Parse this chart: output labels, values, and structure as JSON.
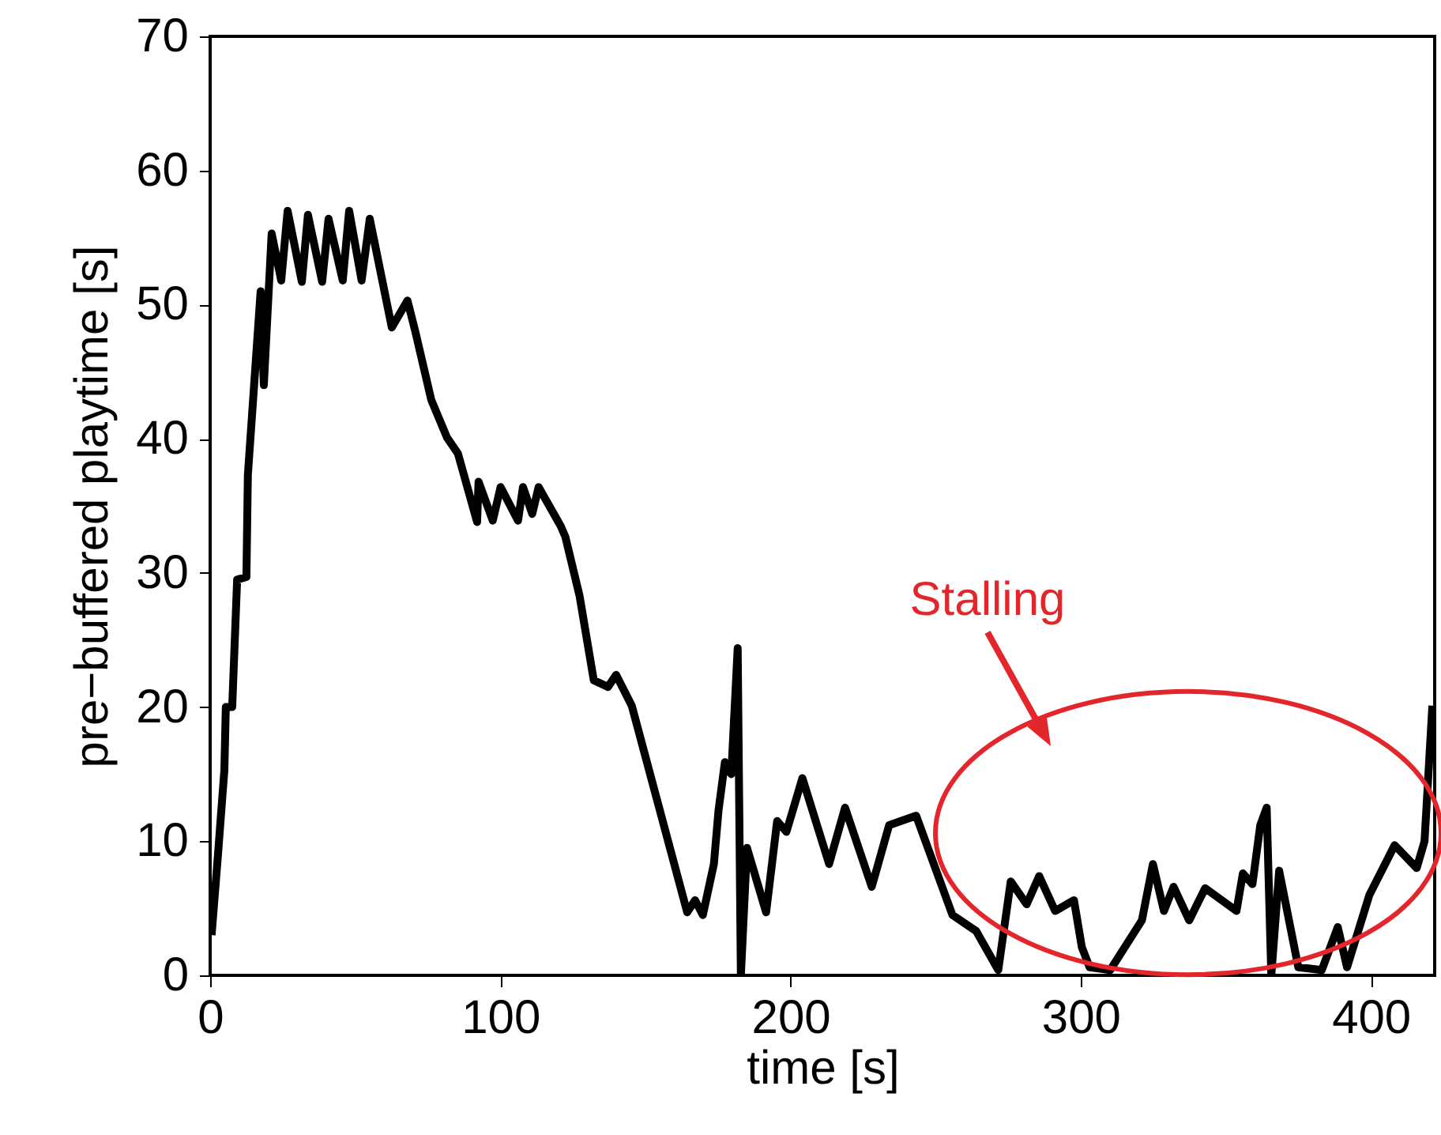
{
  "chart_data": {
    "type": "line",
    "xlabel": "time [s]",
    "ylabel": "pre−buffered playtime [s]",
    "xlim": [
      0,
      422
    ],
    "xticks": [
      0,
      100,
      200,
      300,
      400
    ],
    "ylim": [
      0,
      70
    ],
    "yticks": [
      0,
      10,
      20,
      30,
      40,
      50,
      60,
      70
    ],
    "grid": false,
    "annotations": [
      "Stalling"
    ],
    "series": [
      {
        "color": "#000000",
        "x": [
          0.5,
          2.7,
          4.9,
          5.4,
          7.6,
          9.3,
          12.5,
          13,
          17.4,
          18.5,
          21.2,
          24.5,
          26.7,
          31.6,
          33.7,
          38.6,
          40.8,
          45.7,
          47.9,
          52.2,
          55,
          62.6,
          68,
          70.7,
          76.2,
          81.6,
          85.4,
          92,
          92.5,
          97.4,
          100.1,
          106.1,
          107.8,
          111,
          113.2,
          120.8,
          122.4,
          127.3,
          132.2,
          137.1,
          139.9,
          145.3,
          164.4,
          167.1,
          169.8,
          173.6,
          175.2,
          177.4,
          179.6,
          181.8,
          182.9,
          185,
          191.6,
          195.4,
          198.6,
          204.1,
          213.3,
          218.8,
          228,
          234,
          243.3,
          255.8,
          264,
          271.6,
          275.9,
          281.4,
          285.7,
          291.2,
          297.7,
          300.4,
          303.1,
          310.2,
          321.1,
          324.9,
          328.7,
          332,
          337.4,
          342.9,
          353.7,
          355.9,
          359.2,
          361.9,
          364.1,
          365.7,
          368.4,
          375,
          383.1,
          388.6,
          391.8,
          399.5,
          408.2,
          415.8,
          418.5,
          421.2
        ],
        "values": [
          3,
          9,
          15.3,
          20,
          20,
          29.5,
          29.7,
          37.3,
          51,
          44,
          55.3,
          51.8,
          57,
          51.7,
          56.7,
          51.7,
          56.4,
          51.8,
          57,
          51.8,
          56.4,
          48.3,
          50.3,
          48,
          42.9,
          40.1,
          38.9,
          33.8,
          36.8,
          33.9,
          36.4,
          33.9,
          36.4,
          34.4,
          36.4,
          33.5,
          32.7,
          28.3,
          22,
          21.5,
          22.4,
          20.1,
          4.7,
          5.6,
          4.5,
          8.3,
          12.3,
          15.9,
          15,
          24.4,
          0,
          9.5,
          4.7,
          11.5,
          10.7,
          14.7,
          8.3,
          12.5,
          6.6,
          11.2,
          11.9,
          4.5,
          3.3,
          0.4,
          7,
          5.3,
          7.4,
          4.8,
          5.6,
          2.1,
          0.6,
          0.4,
          4.1,
          8.3,
          4.8,
          6.6,
          4.1,
          6.5,
          4.8,
          7.6,
          6.8,
          11.2,
          12.5,
          0,
          7.8,
          0.6,
          0.4,
          3.6,
          0.6,
          6,
          9.7,
          8,
          10,
          20.1
        ]
      }
    ]
  }
}
